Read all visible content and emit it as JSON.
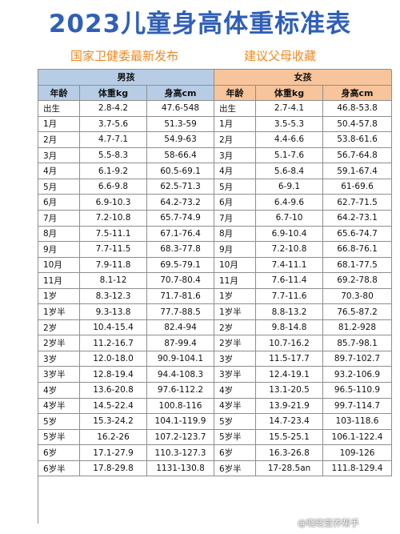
{
  "title": "2023儿童身高体重标准表",
  "subtitle_left": "国家卫健委最新发布",
  "subtitle_right": "建议父母收藏",
  "group_boy": "男孩",
  "group_girl": "女孩",
  "headers": [
    "年龄",
    "体重kg",
    "身高cm",
    "年龄",
    "体重kg",
    "身高cm"
  ],
  "rows": [
    [
      "出生",
      "2.8-4.2",
      "47.6-548",
      "出生",
      "2.7-4.1",
      "46.8-53.8"
    ],
    [
      "1月",
      "3.7-5.6",
      "51.3-59",
      "1月",
      "3.5-5.3",
      "50.4-57.8"
    ],
    [
      "2月",
      "4.7-7.1",
      "54.9-63",
      "2月",
      "4.4-6.6",
      "53.8-61.6"
    ],
    [
      "3月",
      "5.5-8.3",
      "58-66.4",
      "3月",
      "5.1-7.6",
      "56.7-64.8"
    ],
    [
      "4月",
      "6.1-9.2",
      "60.5-69.1",
      "4月",
      "5.6-8.4",
      "59.1-67.4"
    ],
    [
      "5月",
      "6.6-9.8",
      "62.5-71.3",
      "5月",
      "6-9.1",
      "61-69.6"
    ],
    [
      "6月",
      "6.9-10.3",
      "64.2-73.2",
      "6月",
      "6.4-9.6",
      "62.7-71.5"
    ],
    [
      "7月",
      "7.2-10.8",
      "65.7-74.9",
      "7月",
      "6.7-10",
      "64.2-73.1"
    ],
    [
      "8月",
      "7.5-11.1",
      "67.1-76.4",
      "8月",
      "6.9-10.4",
      "65.6-74.7"
    ],
    [
      "9月",
      "7.7-11.5",
      "68.3-77.8",
      "9月",
      "7.2-10.8",
      "66.8-76.1"
    ],
    [
      "10月",
      "7.9-11.8",
      "69.5-79.1",
      "10月",
      "7.4-11.1",
      "68.1-77.5"
    ],
    [
      "11月",
      "8.1-12",
      "70.7-80.4",
      "11月",
      "7.6-11.4",
      "69.2-78.8"
    ],
    [
      "1岁",
      "8.3-12.3",
      "71.7-81.6",
      "1岁",
      "7.7-11.6",
      "70.3-80"
    ],
    [
      "1岁半",
      "9.3-13.8",
      "77.7-88.5",
      "1岁半",
      "8.8-13.2",
      "76.5-87.2"
    ],
    [
      "2岁",
      "10.4-15.4",
      "82.4-94",
      "2岁",
      "9.8-14.8",
      "81.2-928"
    ],
    [
      "2岁半",
      "11.2-16.7",
      "87-99.4",
      "2岁半",
      "10.7-16.2",
      "85.7-98.1"
    ],
    [
      "3岁",
      "12.0-18.0",
      "90.9-104.1",
      "3岁",
      "11.5-17.7",
      "89.7-102.7"
    ],
    [
      "3岁半",
      "12.8-19.4",
      "94.4-108.3",
      "3岁半",
      "12.4-19.1",
      "93.2-106.9"
    ],
    [
      "4岁",
      "13.6-20.8",
      "97.6-112.2",
      "4岁",
      "13.1-20.5",
      "96.5-110.9"
    ],
    [
      "4岁半",
      "14.5-22.4",
      "100.8-116",
      "4岁半",
      "13.9-21.9",
      "99.7-114.7"
    ],
    [
      "5岁",
      "15.3-24.2",
      "104.1-119.9",
      "5岁",
      "14.7-23.4",
      "103-118.6"
    ],
    [
      "5岁半",
      "16.2-26",
      "107.2-123.7",
      "5岁半",
      "15.5-25.1",
      "106.1-122.4"
    ],
    [
      "6岁",
      "17.1-27.9",
      "110.3-127.3",
      "6岁",
      "16.3-26.8",
      "109-126"
    ],
    [
      "6岁半",
      "17.8-29.8",
      "1131-130.8",
      "6岁半",
      "17-28.5an",
      "111.8-129.4"
    ]
  ],
  "watermark": "@晓晓营养帮手"
}
